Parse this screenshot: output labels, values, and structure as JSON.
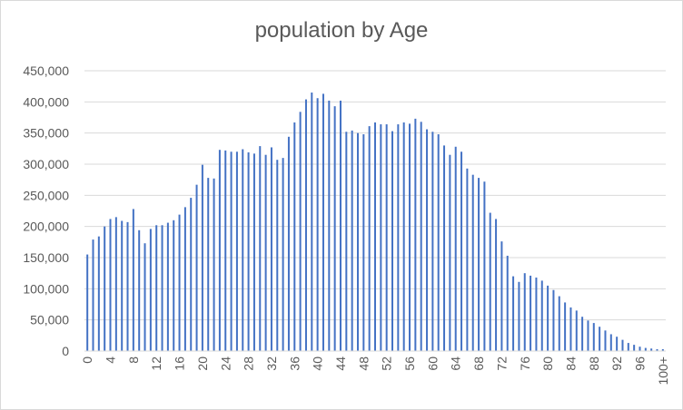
{
  "chart_data": {
    "type": "bar",
    "title": "population by Age",
    "xlabel": "",
    "ylabel": "",
    "ylim": [
      0,
      450000
    ],
    "yticks": [
      0,
      50000,
      100000,
      150000,
      200000,
      250000,
      300000,
      350000,
      400000,
      450000
    ],
    "y_tick_labels": [
      "0",
      "50,000",
      "100,000",
      "150,000",
      "200,000",
      "250,000",
      "300,000",
      "350,000",
      "400,000",
      "450,000"
    ],
    "grid": true,
    "legend": "none",
    "bar_color": "#4472c4",
    "categories": [
      "0",
      "1",
      "2",
      "3",
      "4",
      "5",
      "6",
      "7",
      "8",
      "9",
      "10",
      "11",
      "12",
      "13",
      "14",
      "15",
      "16",
      "17",
      "18",
      "19",
      "20",
      "21",
      "22",
      "23",
      "24",
      "25",
      "26",
      "27",
      "28",
      "29",
      "30",
      "31",
      "32",
      "33",
      "34",
      "35",
      "36",
      "37",
      "38",
      "39",
      "40",
      "41",
      "42",
      "43",
      "44",
      "45",
      "46",
      "47",
      "48",
      "49",
      "50",
      "51",
      "52",
      "53",
      "54",
      "55",
      "56",
      "57",
      "58",
      "59",
      "60",
      "61",
      "62",
      "63",
      "64",
      "65",
      "66",
      "67",
      "68",
      "69",
      "70",
      "71",
      "72",
      "73",
      "74",
      "75",
      "76",
      "77",
      "78",
      "79",
      "80",
      "81",
      "82",
      "83",
      "84",
      "85",
      "86",
      "87",
      "88",
      "89",
      "90",
      "91",
      "92",
      "93",
      "94",
      "95",
      "96",
      "97",
      "98",
      "99",
      "100+"
    ],
    "x_tick_labels_shown": [
      "0",
      "4",
      "8",
      "12",
      "16",
      "20",
      "24",
      "28",
      "32",
      "36",
      "40",
      "44",
      "48",
      "52",
      "56",
      "60",
      "64",
      "68",
      "72",
      "76",
      "80",
      "84",
      "88",
      "92",
      "96",
      "100+"
    ],
    "values": [
      155000,
      179000,
      184000,
      200000,
      212000,
      215000,
      209000,
      207000,
      228000,
      194000,
      173000,
      196000,
      202000,
      202000,
      206000,
      210000,
      219000,
      231000,
      246000,
      267000,
      299000,
      278000,
      277000,
      323000,
      322000,
      320000,
      320000,
      324000,
      319000,
      317000,
      329000,
      315000,
      327000,
      307000,
      310000,
      344000,
      367000,
      384000,
      404000,
      415000,
      406000,
      413000,
      402000,
      393000,
      402000,
      352000,
      354000,
      350000,
      348000,
      361000,
      367000,
      364000,
      364000,
      353000,
      364000,
      367000,
      365000,
      373000,
      368000,
      356000,
      352000,
      348000,
      330000,
      315000,
      328000,
      320000,
      293000,
      283000,
      278000,
      272000,
      222000,
      212000,
      176000,
      153000,
      120000,
      111000,
      125000,
      121000,
      118000,
      113000,
      105000,
      98000,
      88000,
      78000,
      70000,
      65000,
      55000,
      49000,
      45000,
      39000,
      33000,
      27000,
      23000,
      18000,
      13000,
      10000,
      7000,
      5000,
      4000,
      3000,
      3000
    ]
  }
}
